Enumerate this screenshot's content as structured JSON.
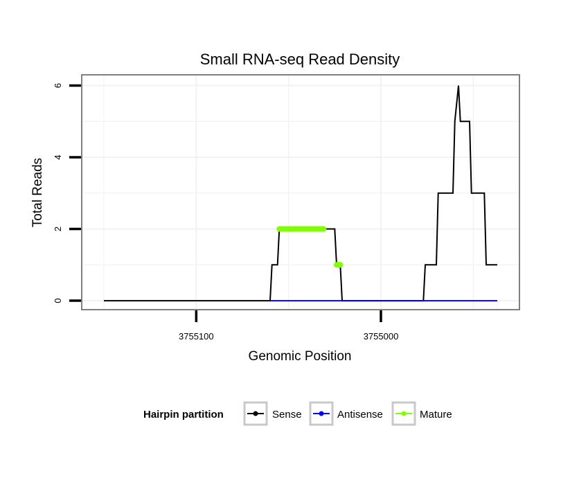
{
  "chart_data": {
    "type": "line",
    "title": "Small RNA-seq Read Density",
    "xlabel": "Genomic Position",
    "ylabel": "Total Reads",
    "x_reversed": true,
    "xlim": [
      3755162,
      3754925
    ],
    "ylim": [
      -0.25,
      6.3
    ],
    "x_ticks": [
      {
        "value": 3755100,
        "label": "3755100"
      },
      {
        "value": 3755000,
        "label": "3755000"
      }
    ],
    "y_ticks": [
      {
        "value": 0,
        "label": "0"
      },
      {
        "value": 2,
        "label": "2"
      },
      {
        "value": 4,
        "label": "4"
      },
      {
        "value": 6,
        "label": "6"
      }
    ],
    "legend": {
      "title": "Hairpin partition",
      "position": "bottom",
      "entries": [
        {
          "name": "Sense",
          "color": "#000000"
        },
        {
          "name": "Antisense",
          "color": "#0000ff"
        },
        {
          "name": "Mature",
          "color": "#7fff00"
        }
      ]
    },
    "series": [
      {
        "name": "Sense",
        "color": "#000000",
        "x": [
          3755150,
          3755060,
          3755059,
          3755056,
          3755055,
          3755025,
          3755024,
          3755022,
          3755021,
          3754977,
          3754976,
          3754970,
          3754969,
          3754961,
          3754960,
          3754958,
          3754957,
          3754952,
          3754951,
          3754944,
          3754943,
          3754938,
          3754937
        ],
        "y": [
          0,
          0,
          1,
          1,
          2,
          2,
          1,
          1,
          0,
          0,
          1,
          1,
          3,
          3,
          5,
          6,
          5,
          5,
          3,
          3,
          1,
          1,
          1
        ]
      },
      {
        "name": "Antisense",
        "color": "#0000ff",
        "x": [
          3755060,
          3755021,
          3754977,
          3754937
        ],
        "y": [
          0,
          0,
          0,
          0
        ]
      },
      {
        "name": "Mature",
        "color": "#7fff00",
        "segments": [
          {
            "x": [
              3755055,
              3755031
            ],
            "y": [
              2,
              2
            ]
          },
          {
            "x": [
              3755024,
              3755022
            ],
            "y": [
              1,
              1
            ]
          }
        ]
      }
    ]
  }
}
